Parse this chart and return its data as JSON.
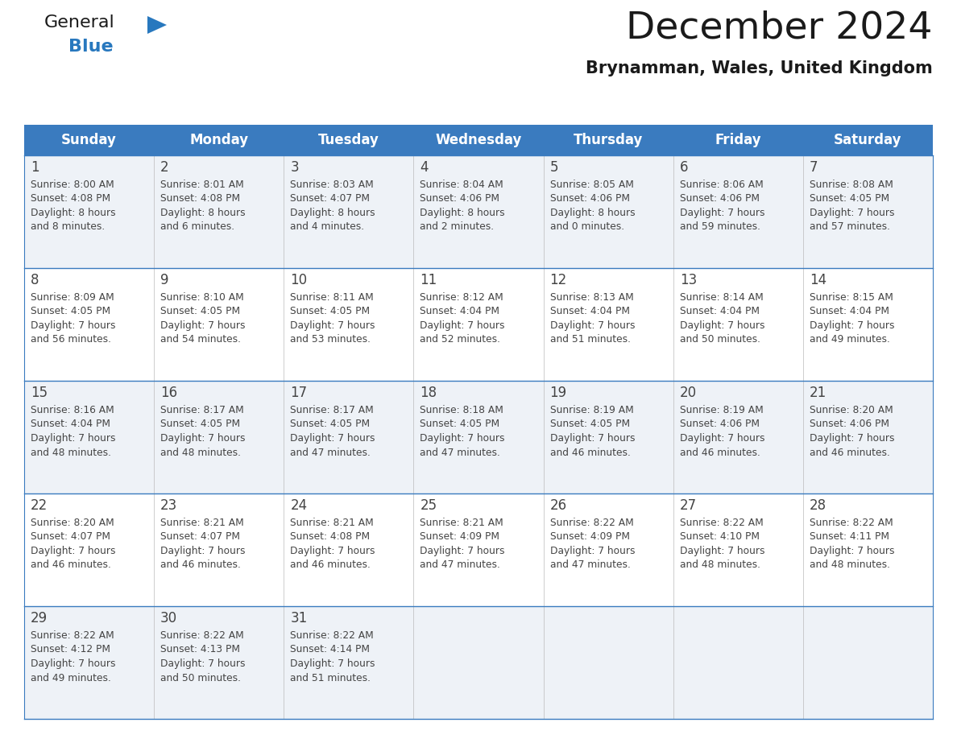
{
  "title": "December 2024",
  "subtitle": "Brynamman, Wales, United Kingdom",
  "header_bg_color": "#3a7bbf",
  "header_text_color": "#ffffff",
  "row_bg_colors": [
    "#eef2f7",
    "#ffffff",
    "#eef2f7",
    "#ffffff",
    "#eef2f7"
  ],
  "border_color": "#3a7bbf",
  "cell_border_color": "#aaaaaa",
  "text_color": "#444444",
  "days_of_week": [
    "Sunday",
    "Monday",
    "Tuesday",
    "Wednesday",
    "Thursday",
    "Friday",
    "Saturday"
  ],
  "weeks": [
    [
      {
        "day": 1,
        "sunrise": "8:00 AM",
        "sunset": "4:08 PM",
        "daylight": "8 hours\nand 8 minutes."
      },
      {
        "day": 2,
        "sunrise": "8:01 AM",
        "sunset": "4:08 PM",
        "daylight": "8 hours\nand 6 minutes."
      },
      {
        "day": 3,
        "sunrise": "8:03 AM",
        "sunset": "4:07 PM",
        "daylight": "8 hours\nand 4 minutes."
      },
      {
        "day": 4,
        "sunrise": "8:04 AM",
        "sunset": "4:06 PM",
        "daylight": "8 hours\nand 2 minutes."
      },
      {
        "day": 5,
        "sunrise": "8:05 AM",
        "sunset": "4:06 PM",
        "daylight": "8 hours\nand 0 minutes."
      },
      {
        "day": 6,
        "sunrise": "8:06 AM",
        "sunset": "4:06 PM",
        "daylight": "7 hours\nand 59 minutes."
      },
      {
        "day": 7,
        "sunrise": "8:08 AM",
        "sunset": "4:05 PM",
        "daylight": "7 hours\nand 57 minutes."
      }
    ],
    [
      {
        "day": 8,
        "sunrise": "8:09 AM",
        "sunset": "4:05 PM",
        "daylight": "7 hours\nand 56 minutes."
      },
      {
        "day": 9,
        "sunrise": "8:10 AM",
        "sunset": "4:05 PM",
        "daylight": "7 hours\nand 54 minutes."
      },
      {
        "day": 10,
        "sunrise": "8:11 AM",
        "sunset": "4:05 PM",
        "daylight": "7 hours\nand 53 minutes."
      },
      {
        "day": 11,
        "sunrise": "8:12 AM",
        "sunset": "4:04 PM",
        "daylight": "7 hours\nand 52 minutes."
      },
      {
        "day": 12,
        "sunrise": "8:13 AM",
        "sunset": "4:04 PM",
        "daylight": "7 hours\nand 51 minutes."
      },
      {
        "day": 13,
        "sunrise": "8:14 AM",
        "sunset": "4:04 PM",
        "daylight": "7 hours\nand 50 minutes."
      },
      {
        "day": 14,
        "sunrise": "8:15 AM",
        "sunset": "4:04 PM",
        "daylight": "7 hours\nand 49 minutes."
      }
    ],
    [
      {
        "day": 15,
        "sunrise": "8:16 AM",
        "sunset": "4:04 PM",
        "daylight": "7 hours\nand 48 minutes."
      },
      {
        "day": 16,
        "sunrise": "8:17 AM",
        "sunset": "4:05 PM",
        "daylight": "7 hours\nand 48 minutes."
      },
      {
        "day": 17,
        "sunrise": "8:17 AM",
        "sunset": "4:05 PM",
        "daylight": "7 hours\nand 47 minutes."
      },
      {
        "day": 18,
        "sunrise": "8:18 AM",
        "sunset": "4:05 PM",
        "daylight": "7 hours\nand 47 minutes."
      },
      {
        "day": 19,
        "sunrise": "8:19 AM",
        "sunset": "4:05 PM",
        "daylight": "7 hours\nand 46 minutes."
      },
      {
        "day": 20,
        "sunrise": "8:19 AM",
        "sunset": "4:06 PM",
        "daylight": "7 hours\nand 46 minutes."
      },
      {
        "day": 21,
        "sunrise": "8:20 AM",
        "sunset": "4:06 PM",
        "daylight": "7 hours\nand 46 minutes."
      }
    ],
    [
      {
        "day": 22,
        "sunrise": "8:20 AM",
        "sunset": "4:07 PM",
        "daylight": "7 hours\nand 46 minutes."
      },
      {
        "day": 23,
        "sunrise": "8:21 AM",
        "sunset": "4:07 PM",
        "daylight": "7 hours\nand 46 minutes."
      },
      {
        "day": 24,
        "sunrise": "8:21 AM",
        "sunset": "4:08 PM",
        "daylight": "7 hours\nand 46 minutes."
      },
      {
        "day": 25,
        "sunrise": "8:21 AM",
        "sunset": "4:09 PM",
        "daylight": "7 hours\nand 47 minutes."
      },
      {
        "day": 26,
        "sunrise": "8:22 AM",
        "sunset": "4:09 PM",
        "daylight": "7 hours\nand 47 minutes."
      },
      {
        "day": 27,
        "sunrise": "8:22 AM",
        "sunset": "4:10 PM",
        "daylight": "7 hours\nand 48 minutes."
      },
      {
        "day": 28,
        "sunrise": "8:22 AM",
        "sunset": "4:11 PM",
        "daylight": "7 hours\nand 48 minutes."
      }
    ],
    [
      {
        "day": 29,
        "sunrise": "8:22 AM",
        "sunset": "4:12 PM",
        "daylight": "7 hours\nand 49 minutes."
      },
      {
        "day": 30,
        "sunrise": "8:22 AM",
        "sunset": "4:13 PM",
        "daylight": "7 hours\nand 50 minutes."
      },
      {
        "day": 31,
        "sunrise": "8:22 AM",
        "sunset": "4:14 PM",
        "daylight": "7 hours\nand 51 minutes."
      },
      null,
      null,
      null,
      null
    ]
  ],
  "logo_color_general": "#1a1a1a",
  "logo_color_blue": "#2878be",
  "logo_triangle_color": "#2878be",
  "title_color": "#1a1a1a",
  "subtitle_color": "#1a1a1a"
}
